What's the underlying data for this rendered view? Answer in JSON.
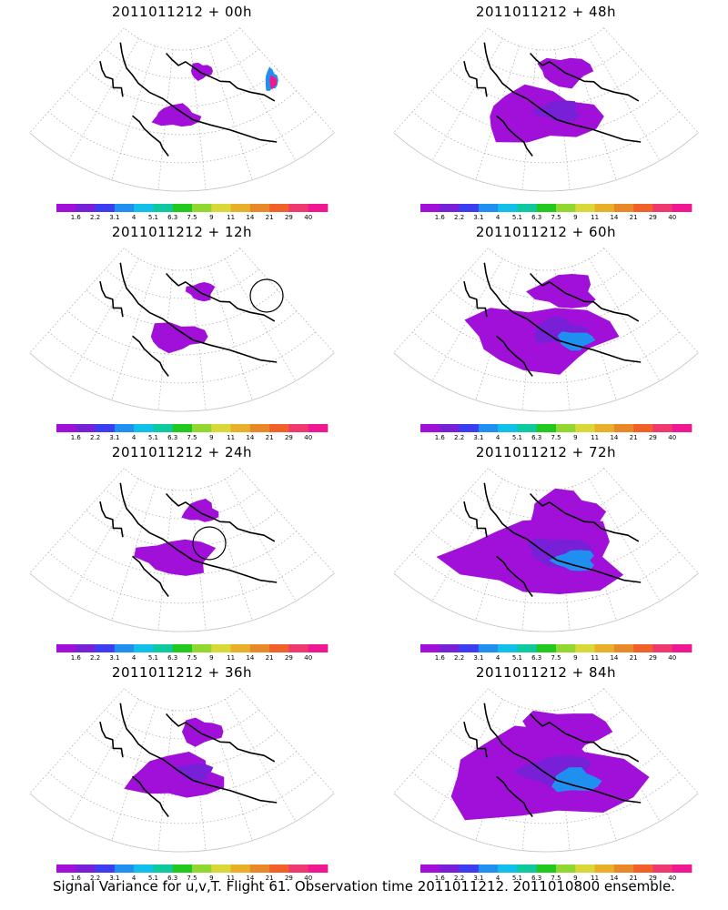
{
  "colors": [
    "#a010d8",
    "#7820d8",
    "#3c3cf0",
    "#2090f0",
    "#10c0e8",
    "#10c8a0",
    "#20c820",
    "#90d830",
    "#d8d838",
    "#e8b028",
    "#e88828",
    "#f06028",
    "#f03870",
    "#f01890"
  ],
  "colorbar_labels": [
    "1.6",
    "2.2",
    "3.1",
    "4",
    "5.1",
    "6.3",
    "7.5",
    "9",
    "11",
    "14",
    "21",
    "29",
    "40"
  ],
  "panels": [
    {
      "title": "2011011212 + 00h",
      "lead": "00h",
      "level": 0.05
    },
    {
      "title": "2011011212 + 48h",
      "lead": "48h",
      "level": 0.45
    },
    {
      "title": "2011011212 + 12h",
      "lead": "12h",
      "level": 0.12
    },
    {
      "title": "2011011212 + 60h",
      "lead": "60h",
      "level": 0.6
    },
    {
      "title": "2011011212 + 24h",
      "lead": "24h",
      "level": 0.22
    },
    {
      "title": "2011011212 + 72h",
      "lead": "72h",
      "level": 0.75
    },
    {
      "title": "2011011212 + 36h",
      "lead": "36h",
      "level": 0.32
    },
    {
      "title": "2011011212 + 84h",
      "lead": "84h",
      "level": 0.9
    }
  ],
  "footer": "Signal Variance for u,v,T. Flight 61. Observation time 2011011212. 2011010800 ensemble."
}
